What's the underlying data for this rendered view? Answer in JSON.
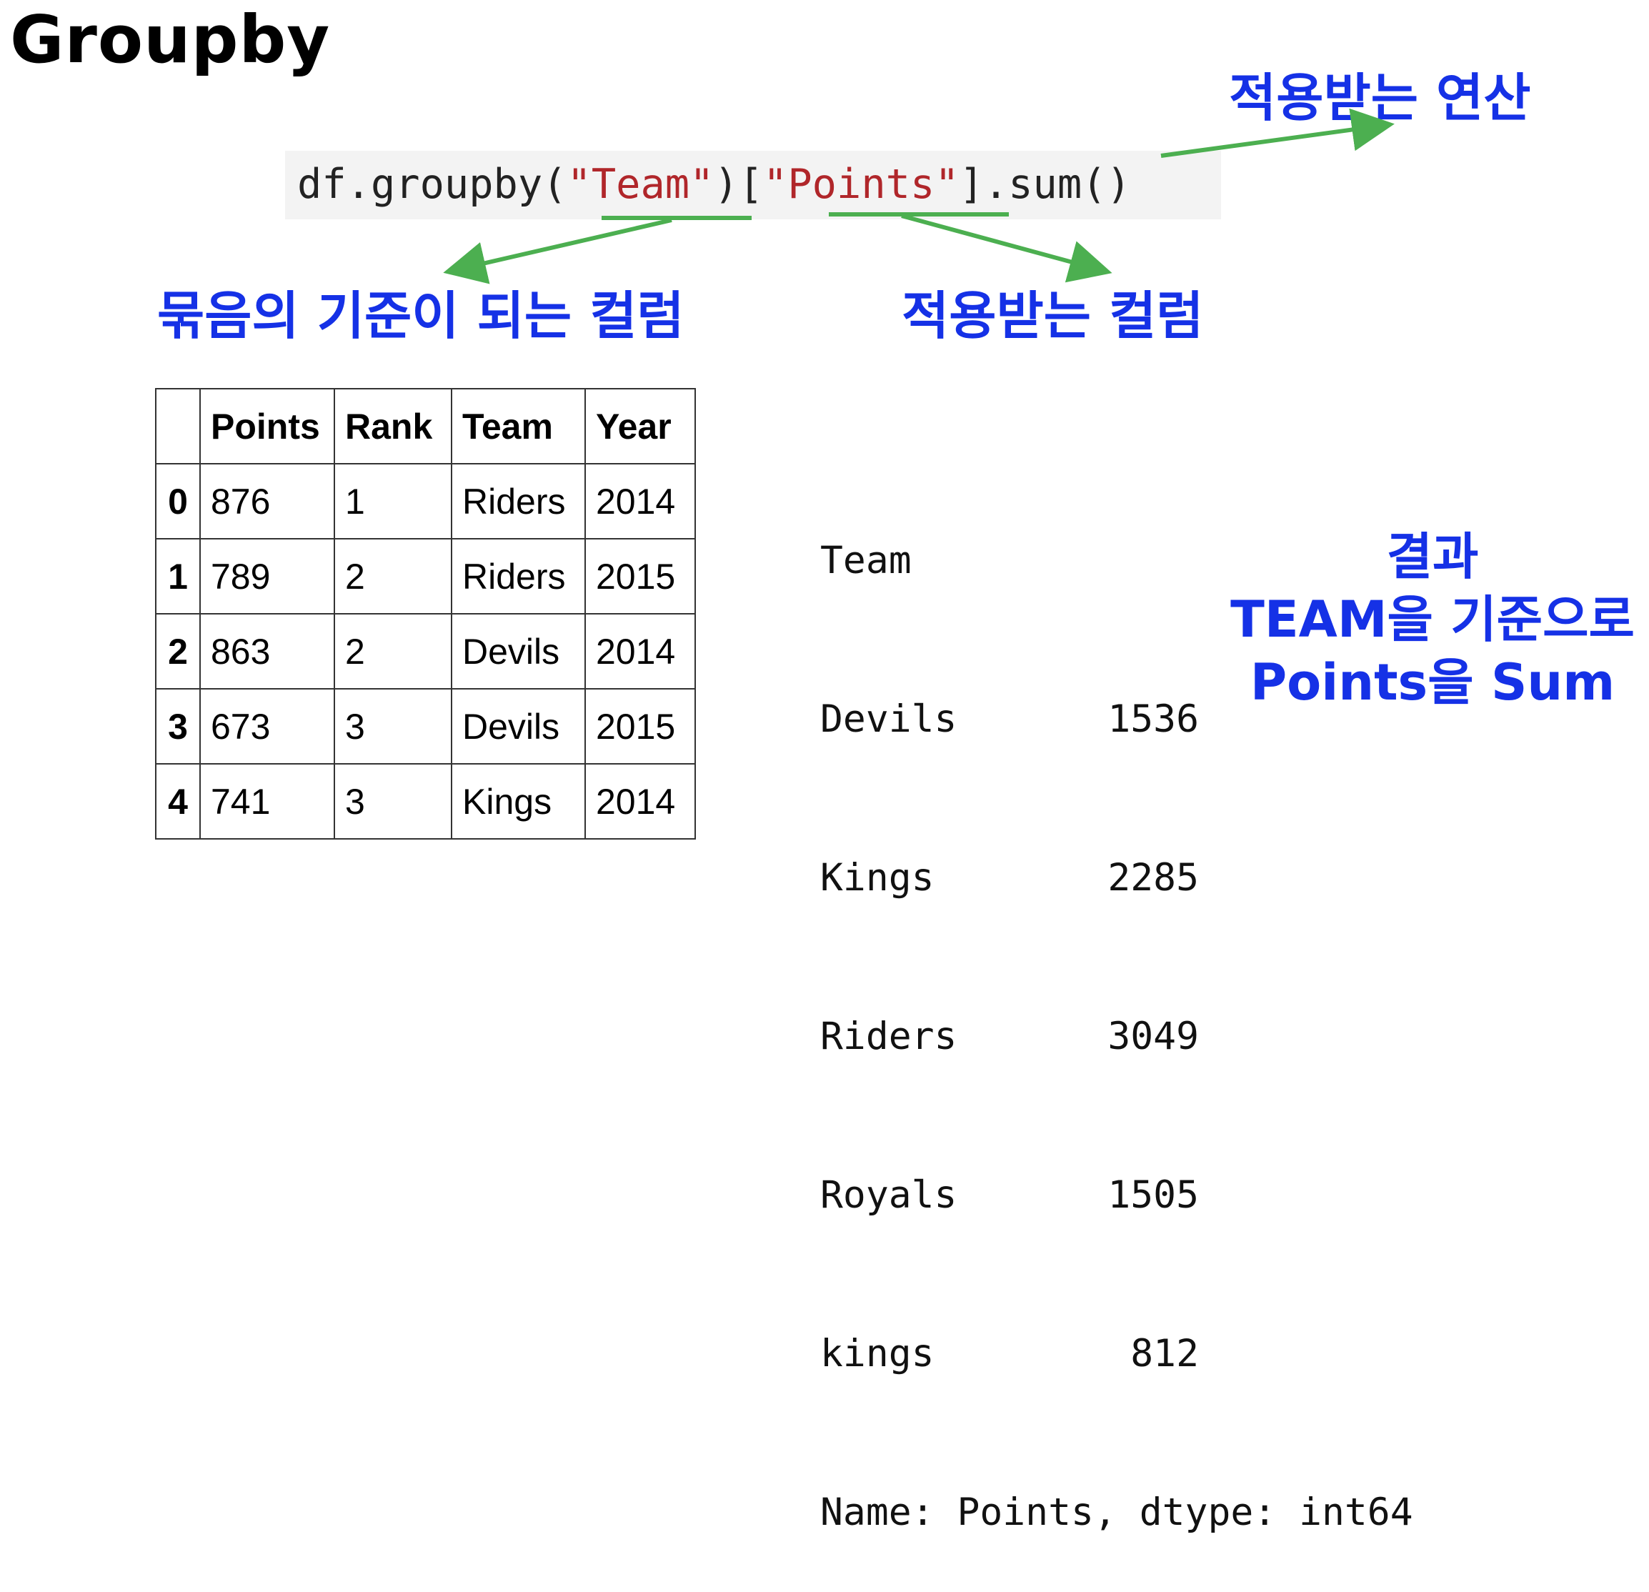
{
  "title": "Groupby",
  "code": {
    "prefix": "df.groupby(",
    "group_key": "\"Team\"",
    "middle": ")[",
    "column": "\"Points\"",
    "suffix": "].sum()"
  },
  "labels": {
    "operation": "적용받는 연산",
    "group_key": "묶음의 기준이 되는 컬럼",
    "applied_column": "적용받는 컬럼"
  },
  "dataframe": {
    "headers": [
      "",
      "Points",
      "Rank",
      "Team",
      "Year"
    ],
    "rows": [
      [
        "0",
        "876",
        "1",
        "Riders",
        "2014"
      ],
      [
        "1",
        "789",
        "2",
        "Riders",
        "2015"
      ],
      [
        "2",
        "863",
        "2",
        "Devils",
        "2014"
      ],
      [
        "3",
        "673",
        "3",
        "Devils",
        "2015"
      ],
      [
        "4",
        "741",
        "3",
        "Kings",
        "2014"
      ]
    ]
  },
  "output": {
    "header": "Team",
    "rows": [
      [
        "Devils",
        "1536"
      ],
      [
        "Kings",
        "2285"
      ],
      [
        "Riders",
        "3049"
      ],
      [
        "Royals",
        "1505"
      ],
      [
        "kings",
        "812"
      ]
    ],
    "footer": "Name: Points, dtype: int64"
  },
  "result_label": {
    "line1": "결과",
    "line2": "TEAM을 기준으로",
    "line3": "Points을 Sum"
  },
  "colors": {
    "annotation_blue": "#1531e6",
    "arrow_green": "#4caf50",
    "string_red": "#b0262a"
  }
}
